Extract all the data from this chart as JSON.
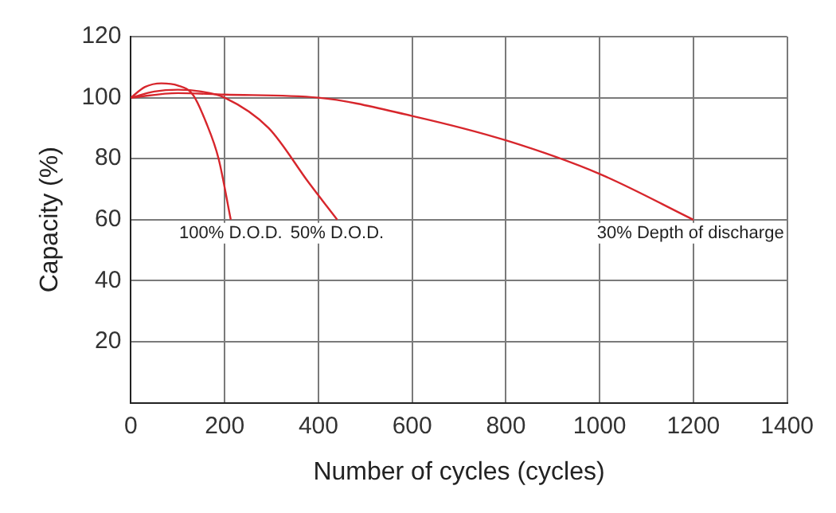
{
  "chart_data": {
    "type": "line",
    "xlabel": "Number of cycles (cycles)",
    "ylabel": "Capacity (%)",
    "series": [
      {
        "color": "#d7262c",
        "x": [
          0,
          30,
          65,
          100,
          132,
          160,
          187,
          213
        ],
        "values": [
          100,
          103.5,
          104.7,
          104,
          101,
          92,
          80,
          60
        ]
      },
      {
        "color": "#d7262c",
        "x": [
          0,
          50,
          100,
          150,
          200,
          294,
          380,
          440
        ],
        "values": [
          100,
          102,
          102.6,
          102,
          100,
          90,
          72,
          60
        ]
      },
      {
        "color": "#d7262c",
        "x": [
          0,
          100,
          200,
          400,
          600,
          800,
          1000,
          1200
        ],
        "values": [
          100,
          101.5,
          101,
          100,
          94,
          86,
          75,
          60
        ]
      }
    ],
    "annotations": [
      {
        "text": "100% D.O.D.",
        "x": 213,
        "y": 60
      },
      {
        "text": "50% D.O.D.",
        "x": 440,
        "y": 60
      },
      {
        "text": "30% Depth of discharge",
        "x": 1200,
        "y": 60
      }
    ],
    "xlim": [
      0,
      1400
    ],
    "xticks": [
      0,
      200,
      400,
      600,
      800,
      1000,
      1200,
      1400
    ],
    "ylim": [
      0,
      120
    ],
    "yticks": [
      {
        "value": 0,
        "label": null
      },
      20,
      40,
      60,
      80,
      100,
      120
    ],
    "grid": true,
    "marker": "none",
    "line_style": "solid",
    "legend": false
  }
}
